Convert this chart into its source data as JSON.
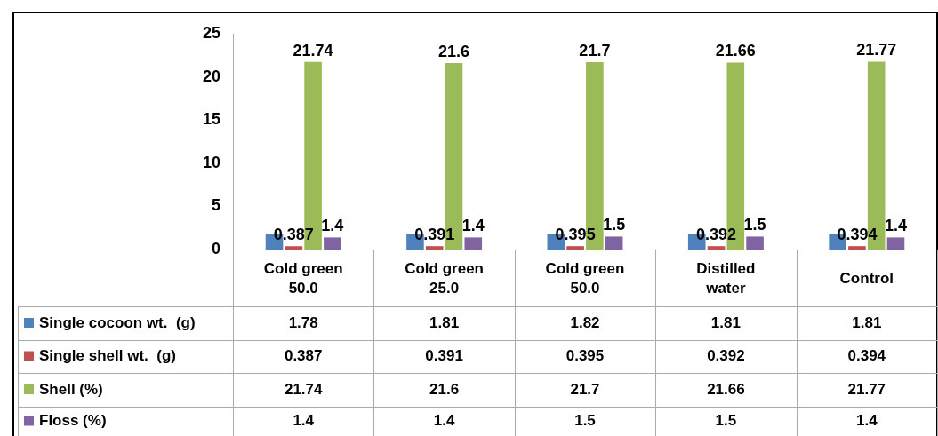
{
  "chart_data": {
    "type": "bar",
    "categories": [
      "Cold green 50.0",
      "Cold green 25.0",
      "Cold green 50.0",
      "Distilled water",
      "Control"
    ],
    "series": [
      {
        "name": "Single cocoon wt.  (g)",
        "color": "#4f81bd",
        "values": [
          1.78,
          1.81,
          1.82,
          1.81,
          1.81
        ],
        "value_labels": [
          "1.78",
          "1.81",
          "1.82",
          "1.81",
          "1.81"
        ]
      },
      {
        "name": "Single shell wt.  (g)",
        "color": "#c0504d",
        "values": [
          0.387,
          0.391,
          0.395,
          0.392,
          0.394
        ],
        "value_labels": [
          "0.387",
          "0.391",
          "0.395",
          "0.392",
          "0.394"
        ]
      },
      {
        "name": "Shell (%)",
        "color": "#9bbb59",
        "values": [
          21.74,
          21.6,
          21.7,
          21.66,
          21.77
        ],
        "value_labels": [
          "21.74",
          "21.6",
          "21.7",
          "21.66",
          "21.77"
        ]
      },
      {
        "name": "Floss (%)",
        "color": "#8064a2",
        "values": [
          1.4,
          1.4,
          1.5,
          1.5,
          1.4
        ],
        "value_labels": [
          "1.4",
          "1.4",
          "1.5",
          "1.5",
          "1.4"
        ]
      }
    ],
    "ylim": [
      0,
      25
    ],
    "yticks": [
      0,
      5,
      10,
      15,
      20,
      25
    ],
    "grid": false,
    "legend": "bottom left"
  }
}
